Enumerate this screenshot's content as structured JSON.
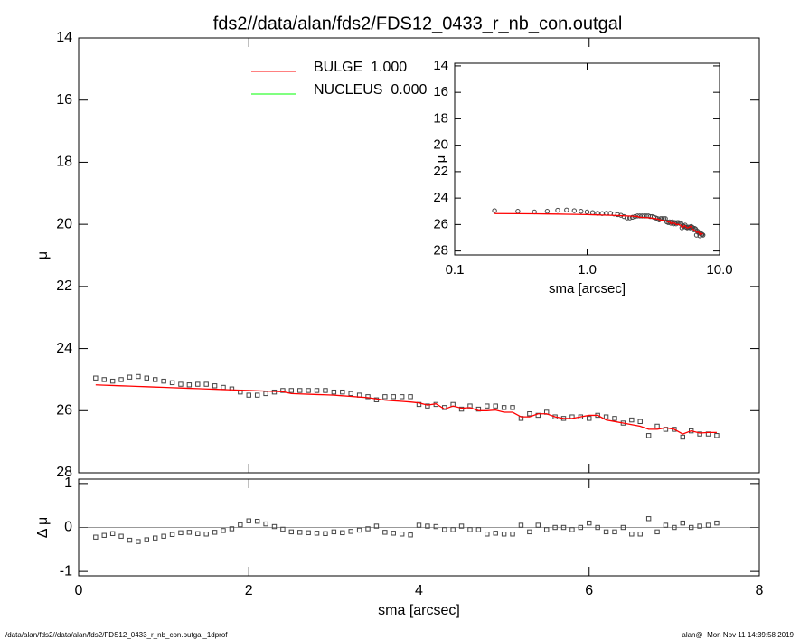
{
  "chart_data": [
    {
      "type": "scatter",
      "title": "fds2//data/alan/fds2/FDS12_0433_r_nb_con.outgal",
      "ylabel": "μ",
      "xlim": [
        0,
        8
      ],
      "xticks": [
        0,
        2,
        4,
        6,
        8
      ],
      "xtick_labels": false,
      "ylim": [
        28,
        14
      ],
      "yticks": [
        14,
        16,
        18,
        20,
        22,
        24,
        26,
        28
      ],
      "marker_color": "#444444",
      "x": [
        0.2,
        0.3,
        0.4,
        0.5,
        0.6,
        0.7,
        0.8,
        0.9,
        1.0,
        1.1,
        1.2,
        1.3,
        1.4,
        1.5,
        1.6,
        1.7,
        1.8,
        1.9,
        2.0,
        2.1,
        2.2,
        2.3,
        2.4,
        2.5,
        2.6,
        2.7,
        2.8,
        2.9,
        3.0,
        3.1,
        3.2,
        3.3,
        3.4,
        3.5,
        3.6,
        3.7,
        3.8,
        3.9,
        4.0,
        4.1,
        4.2,
        4.3,
        4.4,
        4.5,
        4.6,
        4.7,
        4.8,
        4.9,
        5.0,
        5.1,
        5.2,
        5.3,
        5.4,
        5.5,
        5.6,
        5.7,
        5.8,
        5.9,
        6.0,
        6.1,
        6.2,
        6.3,
        6.4,
        6.5,
        6.6,
        6.7,
        6.8,
        6.9,
        7.0,
        7.1,
        7.2,
        7.3,
        7.4,
        7.5
      ],
      "values": [
        24.95,
        25.0,
        25.05,
        25.0,
        24.92,
        24.9,
        24.95,
        25.0,
        25.05,
        25.1,
        25.15,
        25.17,
        25.15,
        25.15,
        25.2,
        25.25,
        25.3,
        25.4,
        25.5,
        25.5,
        25.45,
        25.4,
        25.35,
        25.35,
        25.35,
        25.35,
        25.35,
        25.35,
        25.4,
        25.4,
        25.45,
        25.5,
        25.55,
        25.65,
        25.55,
        25.55,
        25.55,
        25.55,
        25.8,
        25.85,
        25.8,
        25.9,
        25.8,
        25.95,
        25.85,
        25.95,
        25.85,
        25.85,
        25.9,
        25.9,
        26.25,
        26.1,
        26.15,
        26.05,
        26.2,
        26.25,
        26.2,
        26.2,
        26.25,
        26.15,
        26.2,
        26.25,
        26.4,
        26.3,
        26.35,
        26.8,
        26.5,
        26.6,
        26.6,
        26.85,
        26.65,
        26.75,
        26.75,
        26.8
      ],
      "series": [
        {
          "name": "BULGE  1.000",
          "color": "#ff0000",
          "values": [
            25.17,
            25.18,
            25.19,
            25.2,
            25.21,
            25.22,
            25.23,
            25.24,
            25.25,
            25.26,
            25.27,
            25.28,
            25.29,
            25.3,
            25.31,
            25.32,
            25.33,
            25.34,
            25.35,
            25.36,
            25.37,
            25.38,
            25.39,
            25.45,
            25.46,
            25.47,
            25.48,
            25.49,
            25.5,
            25.52,
            25.54,
            25.56,
            25.58,
            25.62,
            25.66,
            25.68,
            25.7,
            25.72,
            25.75,
            25.82,
            25.78,
            25.95,
            25.85,
            25.92,
            25.9,
            26.0,
            26.0,
            25.98,
            26.05,
            26.05,
            26.2,
            26.2,
            26.1,
            26.1,
            26.2,
            26.25,
            26.25,
            26.2,
            26.15,
            26.15,
            26.3,
            26.35,
            26.4,
            26.45,
            26.5,
            26.6,
            26.6,
            26.55,
            26.6,
            26.75,
            26.65,
            26.72,
            26.7,
            26.7
          ]
        },
        {
          "name": "NUCLEUS  0.000",
          "color": "#00ff00",
          "values": [
            null,
            null,
            null,
            null,
            null,
            null,
            null,
            null,
            null,
            null,
            null,
            null,
            null,
            null,
            null,
            null,
            null,
            null,
            null,
            null,
            null,
            null,
            null,
            null,
            null,
            null,
            null,
            null,
            null,
            null,
            null,
            null,
            null,
            null,
            null,
            null,
            null,
            null,
            null,
            null,
            null,
            null,
            null,
            null,
            null,
            null,
            null,
            null,
            null,
            null,
            null,
            null,
            null,
            null,
            null,
            null,
            null,
            null,
            null,
            null,
            null,
            null,
            null,
            null,
            null,
            null,
            null,
            null,
            null,
            null,
            null,
            null,
            null,
            null
          ]
        }
      ]
    },
    {
      "type": "scatter",
      "ylabel": "Δ μ",
      "xlabel": "sma [arcsec]",
      "xlim": [
        0,
        8
      ],
      "xticks": [
        0,
        2,
        4,
        6,
        8
      ],
      "xtick_labels": true,
      "ylim": [
        -1.1,
        1.1
      ],
      "yticks": [
        -1,
        0,
        1
      ],
      "zero_line": true,
      "values": [
        -0.22,
        -0.18,
        -0.14,
        -0.2,
        -0.29,
        -0.32,
        -0.28,
        -0.24,
        -0.2,
        -0.16,
        -0.12,
        -0.11,
        -0.14,
        -0.15,
        -0.11,
        -0.07,
        -0.03,
        0.06,
        0.15,
        0.14,
        0.08,
        0.02,
        -0.04,
        -0.1,
        -0.11,
        -0.12,
        -0.13,
        -0.14,
        -0.1,
        -0.12,
        -0.09,
        -0.06,
        -0.03,
        0.03,
        -0.11,
        -0.13,
        -0.15,
        -0.17,
        0.05,
        0.03,
        0.02,
        -0.05,
        -0.05,
        0.03,
        -0.05,
        -0.05,
        -0.15,
        -0.13,
        -0.15,
        -0.15,
        0.05,
        -0.1,
        0.05,
        -0.05,
        0,
        0,
        -0.05,
        0,
        0.1,
        0,
        -0.1,
        -0.1,
        0,
        -0.15,
        -0.15,
        0.2,
        -0.1,
        0.05,
        0,
        0.1,
        0,
        0.03,
        0.05,
        0.1
      ]
    },
    {
      "type": "line",
      "xlog": true,
      "ylabel": "μ",
      "xlabel": "sma [arcsec]",
      "xlim": [
        0.1,
        10
      ],
      "xticks": [
        0.1,
        {
          "value": 1,
          "label": "1.0"
        },
        {
          "value": 10,
          "label": "10.0"
        }
      ],
      "ylim": [
        28.3,
        13.8
      ],
      "yticks": [
        14,
        16,
        18,
        20,
        22,
        24,
        26,
        28
      ]
    }
  ],
  "footer_left": "/data/alan/fds2//data/alan/fds2/FDS12_0433_r_nb_con.outgal_1dprof",
  "footer_right": "alan@  Mon Nov 11 14:39:58 2019"
}
